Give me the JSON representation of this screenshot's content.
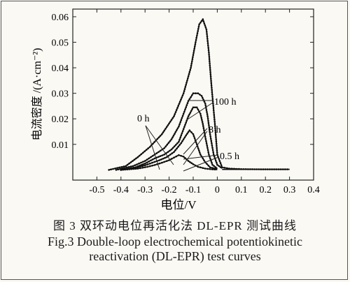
{
  "chart_data": {
    "type": "line",
    "xlabel": "电位/V",
    "ylabel": "电流密度 /(A·cm⁻²)",
    "xlim": [
      -0.6,
      0.4
    ],
    "ylim": [
      -0.004,
      0.063
    ],
    "xticks": [
      "-0.5",
      "-0.4",
      "-0.3",
      "-0.2",
      "-0.1",
      "0",
      "0.1",
      "0.2",
      "0.3",
      "0.4"
    ],
    "yticks": [
      "0.01",
      "0.02",
      "0.03",
      "0.04",
      "0.05",
      "0.06"
    ],
    "annotations": [
      {
        "text": "0 h"
      },
      {
        "text": "100 h"
      },
      {
        "text": "8 h"
      },
      {
        "text": "0.5 h"
      }
    ],
    "series": [
      {
        "x": [
          -0.45,
          -0.38,
          -0.33,
          -0.28,
          -0.23,
          -0.18,
          -0.14,
          -0.11,
          -0.09,
          -0.075,
          -0.06,
          -0.045,
          -0.035,
          -0.025,
          -0.01,
          0.0,
          0.02,
          0.05,
          0.1,
          0.2,
          0.3
        ],
        "y": [
          0.0,
          0.0015,
          0.005,
          0.009,
          0.014,
          0.021,
          0.03,
          0.04,
          0.05,
          0.057,
          0.059,
          0.055,
          0.046,
          0.034,
          0.018,
          0.006,
          0.001,
          0.0005,
          0.0003,
          0.0002,
          0.0002
        ]
      },
      {
        "x": [
          -0.42,
          -0.35,
          -0.3,
          -0.26,
          -0.22,
          -0.19,
          -0.16,
          -0.14,
          -0.12,
          -0.1,
          -0.08,
          -0.065,
          -0.05,
          -0.04,
          -0.03,
          -0.015,
          0.0,
          0.02
        ],
        "y": [
          0.0,
          0.0015,
          0.0035,
          0.006,
          0.0085,
          0.012,
          0.017,
          0.022,
          0.027,
          0.03,
          0.03,
          0.029,
          0.026,
          0.021,
          0.014,
          0.006,
          0.002,
          0.0006
        ]
      },
      {
        "x": [
          -0.4,
          -0.34,
          -0.3,
          -0.26,
          -0.22,
          -0.19,
          -0.16,
          -0.14,
          -0.12,
          -0.1,
          -0.085,
          -0.07,
          -0.06,
          -0.05,
          -0.035,
          -0.02,
          0.0
        ],
        "y": [
          0.0,
          0.001,
          0.0025,
          0.0045,
          0.006,
          0.008,
          0.011,
          0.016,
          0.021,
          0.0245,
          0.0245,
          0.022,
          0.018,
          0.013,
          0.006,
          0.002,
          0.0005
        ]
      },
      {
        "x": [
          -0.4,
          -0.34,
          -0.3,
          -0.27,
          -0.24,
          -0.21,
          -0.18,
          -0.15,
          -0.13,
          -0.115,
          -0.1,
          -0.085,
          -0.07,
          -0.05,
          -0.03,
          0.0
        ],
        "y": [
          0.0,
          0.0008,
          0.0018,
          0.0028,
          0.0038,
          0.005,
          0.007,
          0.0105,
          0.0135,
          0.0155,
          0.014,
          0.01,
          0.006,
          0.003,
          0.001,
          0.0003
        ]
      },
      {
        "x": [
          -0.4,
          -0.33,
          -0.29,
          -0.26,
          -0.23,
          -0.2,
          -0.18,
          -0.16,
          -0.14,
          -0.12,
          -0.1,
          -0.08,
          -0.05,
          -0.02,
          0.0
        ],
        "y": [
          0.0,
          0.0005,
          0.0012,
          0.0019,
          0.0028,
          0.0038,
          0.0048,
          0.0058,
          0.0052,
          0.0035,
          0.0022,
          0.0012,
          0.0005,
          0.0002,
          0.0001
        ]
      }
    ]
  },
  "caption": {
    "cn": "图 3  双环动电位再活化法 DL-EPR 测试曲线",
    "en_line1": "Fig.3  Double-loop electrochemical potentiokinetic",
    "en_line2": "reactivation (DL-EPR) test curves"
  }
}
